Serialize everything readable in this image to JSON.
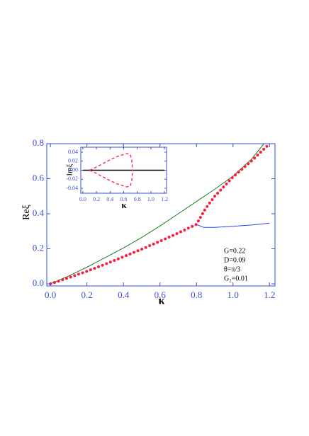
{
  "chart_data": [
    {
      "type": "line",
      "x_label": "κ",
      "y_label": "Reξ",
      "annotations": [
        "G=0.22",
        "D=0.09",
        "θ=π/3",
        "G₂=0.01"
      ],
      "xlim": [
        -0.02,
        1.23
      ],
      "ylim": [
        -0.012,
        0.8
      ],
      "xticks": [
        {
          "value": 0,
          "label": "0.0"
        },
        0.2,
        0.4,
        0.6,
        0.8,
        {
          "value": 1,
          "label": "1.0"
        },
        1.2
      ],
      "yticks": [
        {
          "value": 0,
          "label": "0.0"
        },
        0.2,
        0.4,
        0.6,
        0.8
      ],
      "axis_color": "#3a4fd6",
      "series": [
        {
          "color": "#1f7a1f",
          "style": "solid",
          "width": 1,
          "x": [
            0,
            0.1,
            0.2,
            0.3,
            0.4,
            0.5,
            0.6,
            0.7,
            0.8,
            0.9,
            1.0,
            1.1,
            1.17
          ],
          "values": [
            0,
            0.045,
            0.095,
            0.15,
            0.205,
            0.265,
            0.33,
            0.4,
            0.47,
            0.54,
            0.615,
            0.71,
            0.8
          ]
        },
        {
          "color": "#ff1a3c",
          "style": "dotted",
          "width": 4,
          "x": [
            0,
            0.1,
            0.2,
            0.3,
            0.4,
            0.5,
            0.6,
            0.7,
            0.8,
            0.85,
            0.9,
            1.0,
            1.1,
            1.2
          ],
          "values": [
            0,
            0.035,
            0.072,
            0.112,
            0.155,
            0.198,
            0.243,
            0.29,
            0.34,
            0.43,
            0.5,
            0.61,
            0.7,
            0.8
          ]
        },
        {
          "color": "#3048e8",
          "style": "solid",
          "width": 1,
          "x": [
            0.8,
            0.82,
            0.84,
            0.9,
            1.0,
            1.1,
            1.2
          ],
          "values": [
            0.34,
            0.33,
            0.322,
            0.322,
            0.328,
            0.336,
            0.346
          ]
        }
      ]
    },
    {
      "type": "line",
      "x_label": "κ",
      "y_label": "Imξ",
      "xlim": [
        -0.03,
        1.23
      ],
      "ylim": [
        -0.051,
        0.051
      ],
      "xticks": [
        {
          "value": 0,
          "label": "0.0"
        },
        0.2,
        0.4,
        0.6,
        0.8,
        {
          "value": 1,
          "label": "1.0"
        },
        1.2
      ],
      "yticks": [
        0.04,
        0.02,
        {
          "value": 0,
          "label": "0.00"
        },
        -0.02,
        -0.04
      ],
      "axis_color": "#3a4fd6",
      "series": [
        {
          "color": "#000000",
          "style": "solid",
          "width": 1.6,
          "x": [
            0,
            1.2
          ],
          "values": [
            0,
            0
          ]
        },
        {
          "color": "#ff1a3c",
          "style": "dashed",
          "width": 1.3,
          "x": [
            0.1,
            0.2,
            0.3,
            0.4,
            0.5,
            0.6,
            0.65,
            0.7,
            0.72,
            0.73
          ],
          "values": [
            0,
            0.007,
            0.015,
            0.023,
            0.03,
            0.035,
            0.037,
            0.034,
            0.022,
            0
          ]
        },
        {
          "color": "#ff1a3c",
          "style": "dashed",
          "width": 1.3,
          "x": [
            0.1,
            0.2,
            0.3,
            0.4,
            0.5,
            0.6,
            0.65,
            0.7,
            0.72,
            0.73
          ],
          "values": [
            0,
            -0.007,
            -0.015,
            -0.023,
            -0.03,
            -0.035,
            -0.037,
            -0.034,
            -0.022,
            0
          ]
        }
      ]
    }
  ]
}
